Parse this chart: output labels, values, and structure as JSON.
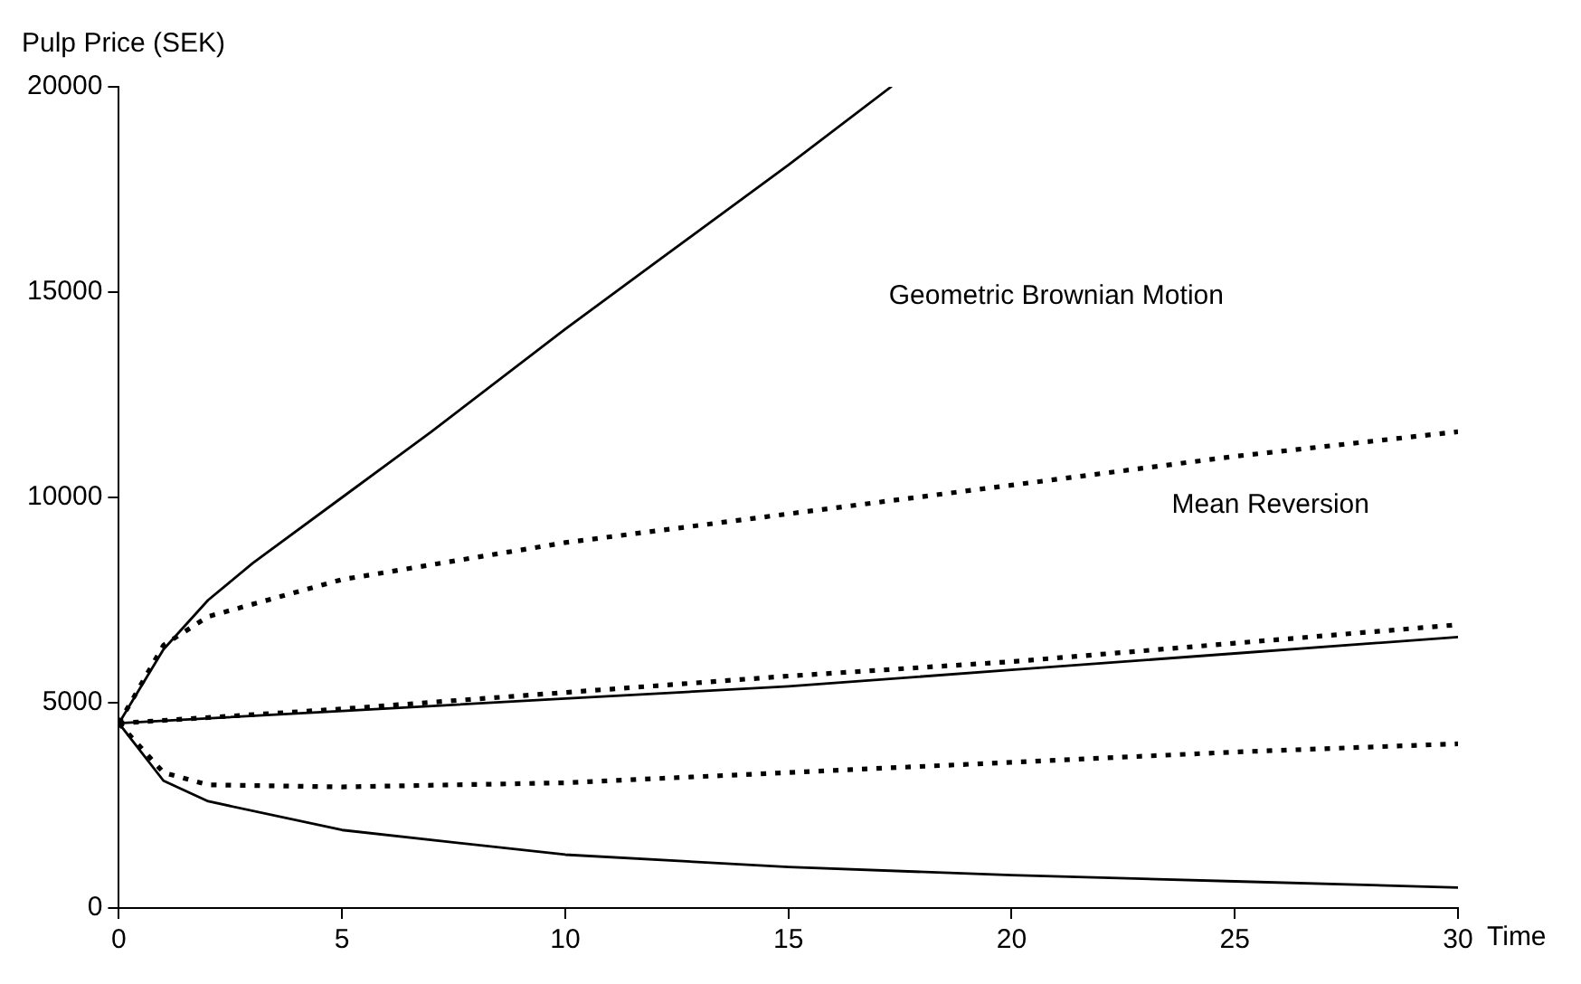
{
  "chart_data": {
    "type": "line",
    "xlabel": "Time",
    "ylabel": "Pulp Price (SEK)",
    "xlim": [
      0,
      30
    ],
    "xticks": [
      0,
      5,
      10,
      15,
      20,
      25,
      30
    ],
    "ylim": [
      0,
      20000
    ],
    "yticks": [
      0,
      5000,
      10000,
      15000,
      20000
    ],
    "grid": false,
    "legend": false,
    "marker": "none",
    "annotations": [
      "Geometric Brownian Motion",
      "Mean Reversion"
    ],
    "series": [
      {
        "color": "#000000",
        "line_style": "solid",
        "x": [
          0,
          1,
          2,
          3,
          5,
          7,
          10,
          12,
          15,
          17.3
        ],
        "values": [
          4500,
          6300,
          7500,
          8400,
          10000,
          11600,
          14100,
          15700,
          18100,
          20000
        ]
      },
      {
        "color": "#000000",
        "line_style": "solid",
        "x": [
          0,
          5,
          10,
          15,
          20,
          25,
          30
        ],
        "values": [
          4500,
          4800,
          5100,
          5400,
          5800,
          6200,
          6600
        ]
      },
      {
        "color": "#000000",
        "line_style": "solid",
        "x": [
          0,
          1,
          2,
          5,
          10,
          15,
          20,
          25,
          30
        ],
        "values": [
          4500,
          3100,
          2600,
          1900,
          1300,
          1000,
          800,
          650,
          500
        ]
      },
      {
        "color": "#000000",
        "line_style": "dotted",
        "x": [
          0,
          1,
          2,
          5,
          10,
          15,
          20,
          25,
          30
        ],
        "values": [
          4500,
          6400,
          7100,
          8000,
          8900,
          9600,
          10300,
          11000,
          11600
        ]
      },
      {
        "color": "#000000",
        "line_style": "dotted",
        "x": [
          0,
          5,
          10,
          15,
          20,
          25,
          30
        ],
        "values": [
          4500,
          4850,
          5250,
          5650,
          6000,
          6450,
          6900
        ]
      },
      {
        "color": "#000000",
        "line_style": "dotted",
        "x": [
          0,
          1,
          2,
          5,
          10,
          15,
          20,
          25,
          30
        ],
        "values": [
          4500,
          3300,
          3000,
          2950,
          3050,
          3300,
          3550,
          3800,
          4000
        ]
      }
    ]
  }
}
